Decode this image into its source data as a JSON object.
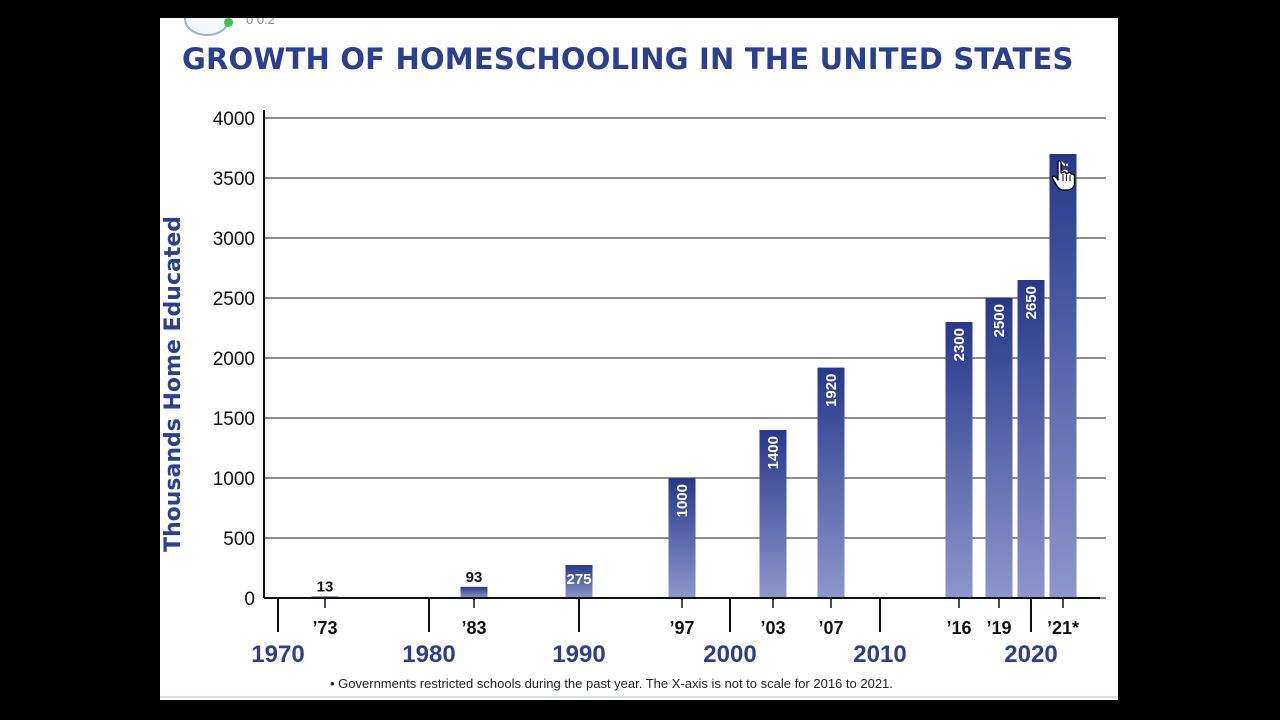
{
  "header": {
    "logo_text": "0 0:2"
  },
  "footnote": "• Governments restricted schools during the past year. The X-axis is not to scale for 2016 to 2021.",
  "chart_data": {
    "type": "bar",
    "title": "GROWTH OF HOMESCHOOLING IN THE UNITED STATES",
    "ylabel": "Thousands Home Educated",
    "xlabel": "",
    "ylim": [
      0,
      4000
    ],
    "yticks": [
      0,
      500,
      1000,
      1500,
      2000,
      2500,
      3000,
      3500,
      4000
    ],
    "grid": true,
    "decade_labels": [
      {
        "label": "1970",
        "year": 1970
      },
      {
        "label": "1980",
        "year": 1980
      },
      {
        "label": "1990",
        "year": 1990
      },
      {
        "label": "2000",
        "year": 2000
      },
      {
        "label": "2010",
        "year": 2010
      },
      {
        "label": "2020",
        "year": 2020
      }
    ],
    "bars": [
      {
        "tick": "'73",
        "year": 1973,
        "value": 13,
        "label": "13",
        "label_pos": "above"
      },
      {
        "tick": "'83",
        "year": 1983,
        "value": 93,
        "label": "93",
        "label_pos": "above"
      },
      {
        "tick": "",
        "year": 1990,
        "value": 275,
        "label": "275",
        "label_pos": "inside"
      },
      {
        "tick": "'97",
        "year": 1997,
        "value": 1000,
        "label": "1000",
        "label_pos": "inside-vertical"
      },
      {
        "tick": "'03",
        "year": 2003,
        "value": 1400,
        "label": "1400",
        "label_pos": "inside-vertical"
      },
      {
        "tick": "'07",
        "year": 2007,
        "value": 1920,
        "label": "1920",
        "label_pos": "inside-vertical"
      },
      {
        "tick": "'16",
        "year": 2016,
        "value": 2300,
        "label": "2300",
        "label_pos": "inside-vertical"
      },
      {
        "tick": "'19",
        "year": 2019,
        "value": 2500,
        "label": "2500",
        "label_pos": "inside-vertical"
      },
      {
        "tick": "",
        "year": 2020,
        "value": 2650,
        "label": "2650",
        "label_pos": "inside-vertical"
      },
      {
        "tick": "'21*",
        "year": 2021,
        "value": 3700,
        "label": "3?",
        "label_pos": "inside-vertical"
      }
    ],
    "colors": {
      "bar_top": "#27388c",
      "bar_bottom": "#8d97cc",
      "text": "#2a3f8f"
    }
  }
}
